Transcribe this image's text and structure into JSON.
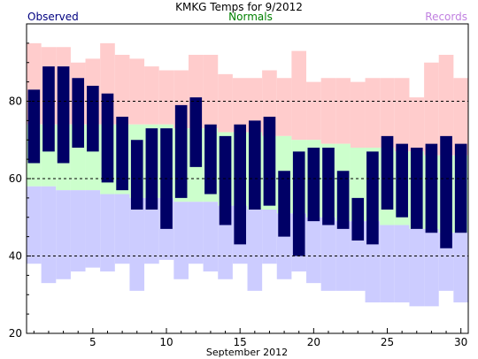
{
  "chart_data": {
    "type": "bar",
    "title": "KMKG Temps for 9/2012",
    "xlabel": "September 2012",
    "ylabel": "",
    "ylim": [
      20,
      100
    ],
    "xlim": [
      0.5,
      30.5
    ],
    "legend": {
      "observed": "Observed",
      "normals": "Normals",
      "records": "Records"
    },
    "x_ticks": [
      "5",
      "10",
      "15",
      "20",
      "25",
      "30"
    ],
    "y_ticks": [
      "20",
      "40",
      "60",
      "80"
    ],
    "dashed_gridlines": [
      40,
      60,
      80
    ],
    "colors": {
      "observed": "#000066",
      "normals": "#ccffcc",
      "record_high": "#ffcccc",
      "record_low": "#ccccff",
      "observed_label": "#000080",
      "normals_label": "#008000",
      "records_label": "#c080e0"
    },
    "days": [
      1,
      2,
      3,
      4,
      5,
      6,
      7,
      8,
      9,
      10,
      11,
      12,
      13,
      14,
      15,
      16,
      17,
      18,
      19,
      20,
      21,
      22,
      23,
      24,
      25,
      26,
      27,
      28,
      29,
      30
    ],
    "series": [
      {
        "name": "Observed",
        "high": [
          83,
          89,
          89,
          86,
          84,
          82,
          76,
          70,
          73,
          73,
          79,
          81,
          74,
          71,
          74,
          75,
          76,
          62,
          67,
          68,
          68,
          62,
          55,
          67,
          71,
          69,
          68,
          69,
          71,
          69
        ],
        "low": [
          64,
          67,
          64,
          68,
          67,
          59,
          57,
          52,
          52,
          47,
          55,
          63,
          56,
          48,
          43,
          52,
          53,
          45,
          40,
          49,
          48,
          47,
          44,
          43,
          52,
          50,
          47,
          46,
          42,
          46
        ]
      },
      {
        "name": "Normals",
        "high": [
          74,
          74,
          74,
          74,
          74,
          74,
          74,
          74,
          74,
          74,
          73,
          73,
          73,
          72,
          72,
          72,
          71,
          71,
          70,
          70,
          69,
          69,
          68,
          68,
          68,
          67,
          67,
          66,
          66,
          66
        ],
        "low": [
          58,
          58,
          57,
          57,
          57,
          56,
          56,
          55,
          55,
          55,
          54,
          54,
          54,
          53,
          53,
          52,
          52,
          51,
          51,
          50,
          50,
          49,
          49,
          49,
          48,
          48,
          47,
          47,
          46,
          46
        ]
      },
      {
        "name": "Records",
        "high": [
          95,
          94,
          94,
          90,
          91,
          95,
          92,
          91,
          89,
          88,
          88,
          92,
          92,
          87,
          86,
          86,
          88,
          86,
          93,
          85,
          86,
          86,
          85,
          86,
          86,
          86,
          81,
          90,
          92,
          86
        ],
        "low": [
          38,
          33,
          34,
          36,
          37,
          36,
          38,
          31,
          38,
          39,
          34,
          38,
          36,
          34,
          38,
          31,
          38,
          34,
          36,
          33,
          31,
          31,
          31,
          28,
          28,
          28,
          27,
          27,
          31,
          28
        ]
      }
    ]
  }
}
